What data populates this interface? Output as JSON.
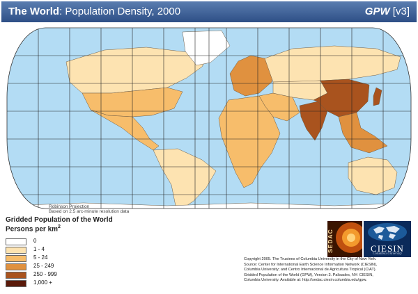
{
  "header": {
    "title_bold": "The World",
    "title_rest": ": Population Density, 2000",
    "brand_name": "GPW",
    "brand_version": " [v3]"
  },
  "map": {
    "projection_note": "Robinson Projection",
    "resolution_note": "Based on 2.5 arc-minute resolution data",
    "colors": {
      "ocean": "#b3dcf4",
      "border": "#6b5a45",
      "graticule": "#222222"
    },
    "regions": [
      {
        "name": "canada",
        "density_class": 1
      },
      {
        "name": "united-states",
        "density_class": 2
      },
      {
        "name": "mexico-central-america",
        "density_class": 2
      },
      {
        "name": "greenland",
        "density_class": 0
      },
      {
        "name": "south-america",
        "density_class": 1
      },
      {
        "name": "europe",
        "density_class": 3
      },
      {
        "name": "russia",
        "density_class": 1
      },
      {
        "name": "africa",
        "density_class": 2
      },
      {
        "name": "middle-east",
        "density_class": 2
      },
      {
        "name": "central-asia",
        "density_class": 1
      },
      {
        "name": "india",
        "density_class": 4
      },
      {
        "name": "china",
        "density_class": 4
      },
      {
        "name": "southeast-asia",
        "density_class": 3
      },
      {
        "name": "japan",
        "density_class": 4
      },
      {
        "name": "australia",
        "density_class": 1
      },
      {
        "name": "antarctica",
        "density_class": 0
      }
    ]
  },
  "legend": {
    "title": "Gridded Population of the World",
    "unit_text": "Persons per km",
    "unit_exp": "2",
    "classes": [
      {
        "label": "0",
        "color": "#ffffff"
      },
      {
        "label": "1 - 4",
        "color": "#fde3b1"
      },
      {
        "label": "5 - 24",
        "color": "#f7bd6b"
      },
      {
        "label": "25 - 249",
        "color": "#e0913f"
      },
      {
        "label": "250 - 999",
        "color": "#a9531e"
      },
      {
        "label": "1,000 +",
        "color": "#5a1a0a"
      }
    ]
  },
  "logos": {
    "sedac": "SEDAC",
    "ciesin": "CIESIN",
    "ciesin_sub": "Columbia University"
  },
  "copyright": [
    "Copyright 2005. The Trustees of Columbia University in the City of New York.",
    "Source: Center for International Earth Science Information Network (CIESIN),",
    "Columbia University; and Centro Internacional de Agricultura Tropical (CIAT).",
    "Gridded Population of the World (GPW), Version 3. Palisades, NY: CIESIN,",
    "Columbia University. Available at: http://sedac.ciesin.columbia.edu/gpw."
  ]
}
